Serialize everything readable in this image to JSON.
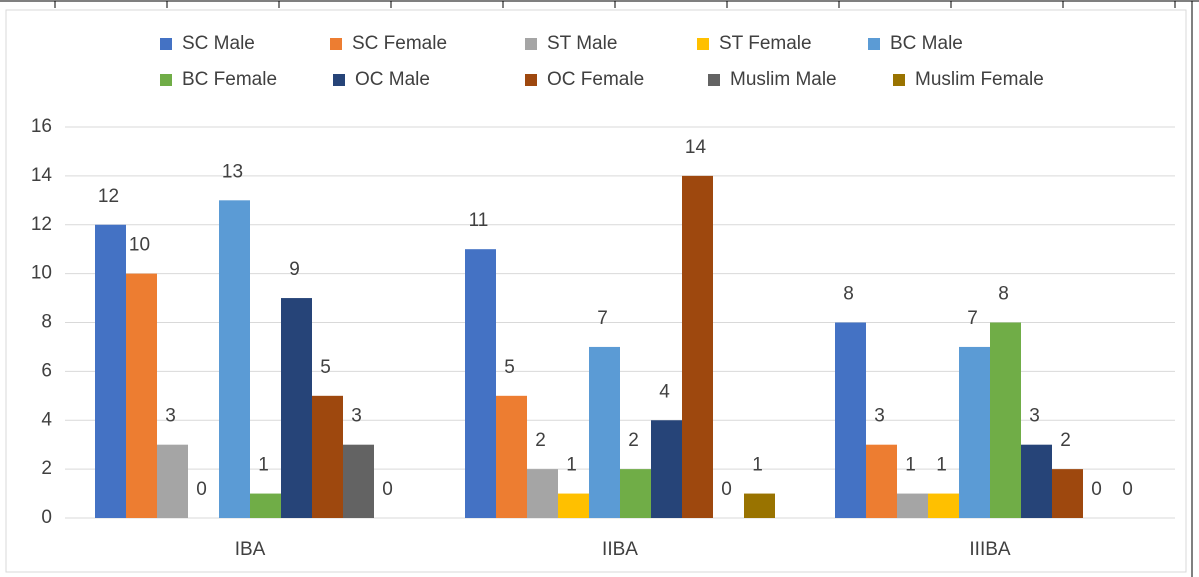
{
  "chart_data": {
    "type": "bar",
    "categories": [
      "IBA",
      "IIBA",
      "IIIBA"
    ],
    "series": [
      {
        "name": "SC Male",
        "color": "#4472c4",
        "values": [
          12,
          11,
          8
        ]
      },
      {
        "name": "SC Female",
        "color": "#ed7d31",
        "values": [
          10,
          5,
          3
        ]
      },
      {
        "name": "ST Male",
        "color": "#a5a5a5",
        "values": [
          3,
          2,
          1
        ]
      },
      {
        "name": "ST Female",
        "color": "#ffc000",
        "values": [
          0,
          1,
          1
        ]
      },
      {
        "name": "BC Male",
        "color": "#5b9bd5",
        "values": [
          13,
          7,
          7
        ]
      },
      {
        "name": "BC Female",
        "color": "#70ad47",
        "values": [
          1,
          2,
          8
        ]
      },
      {
        "name": "OC Male",
        "color": "#264478",
        "values": [
          9,
          4,
          3
        ]
      },
      {
        "name": "OC Female",
        "color": "#9e480e",
        "values": [
          5,
          14,
          2
        ]
      },
      {
        "name": "Muslim Male",
        "color": "#636363",
        "values": [
          3,
          0,
          0
        ]
      },
      {
        "name": "Muslim Female",
        "color": "#997300",
        "values": [
          0,
          1,
          0
        ]
      }
    ],
    "ylim": [
      0,
      16
    ],
    "yticks": [
      0,
      2,
      4,
      6,
      8,
      10,
      12,
      14,
      16
    ],
    "grid": true,
    "legend": "top"
  }
}
